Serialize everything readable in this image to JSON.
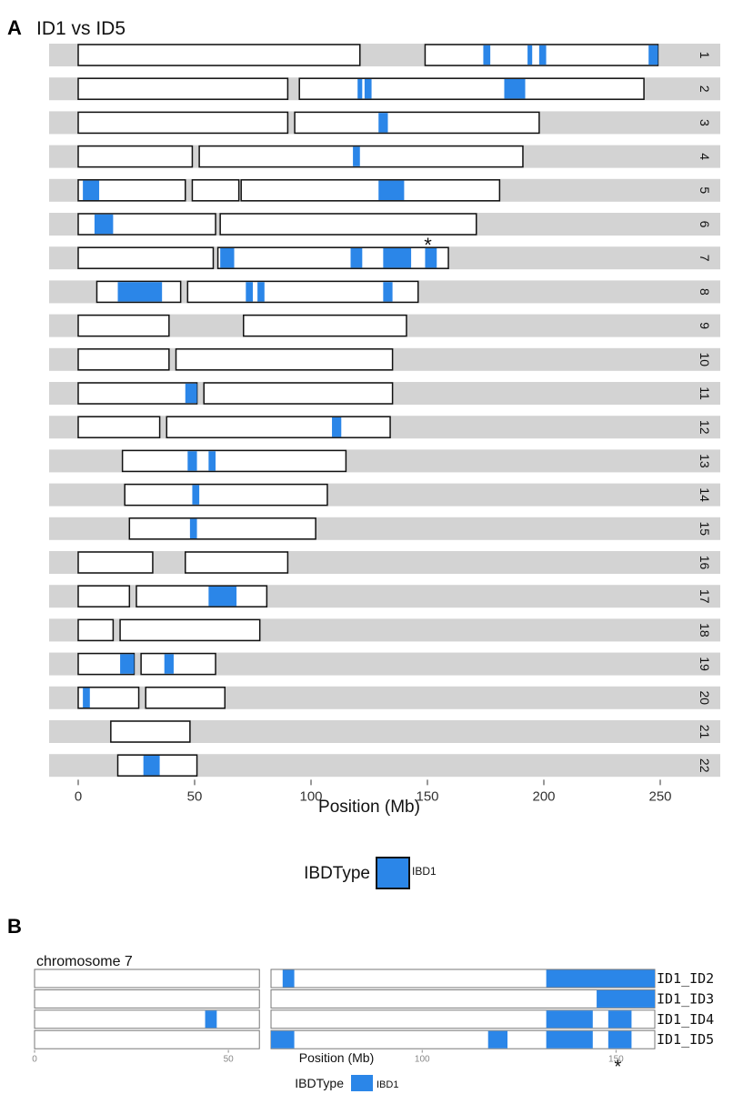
{
  "panel_a": {
    "letter": "A",
    "title": "ID1 vs ID5",
    "xlabel": "Position (Mb)",
    "x_ticks": [
      0,
      50,
      100,
      150,
      200,
      250
    ],
    "legend": {
      "title": "IBDType",
      "label": "IBD1"
    },
    "asterisk": "*"
  },
  "panel_b": {
    "letter": "B",
    "title": "chromosome 7",
    "xlabel": "Position (Mb)",
    "x_ticks": [
      0,
      50,
      100,
      150
    ],
    "legend": {
      "title": "IBDType",
      "label": "IBD1"
    },
    "asterisk": "*"
  },
  "colors": {
    "ibd1": "#2b86e8",
    "strip": "#d3d3d3",
    "outline": "#111111"
  },
  "chart_data": [
    {
      "type": "bar",
      "title": "ID1 vs ID5",
      "xlabel": "Position (Mb)",
      "xlim": [
        -13,
        275
      ],
      "grid": false,
      "legend_position": "bottom",
      "legend": [
        {
          "name": "IBD1",
          "color": "#2b86e8"
        }
      ],
      "chromosomes": [
        {
          "name": "1",
          "arms": [
            [
              0,
              121
            ],
            [
              149,
              249
            ]
          ],
          "ibd1": [
            [
              174,
              177
            ],
            [
              193,
              195
            ],
            [
              198,
              201
            ],
            [
              245,
              249
            ]
          ]
        },
        {
          "name": "2",
          "arms": [
            [
              0,
              90
            ],
            [
              95,
              243
            ]
          ],
          "ibd1": [
            [
              120,
              122
            ],
            [
              123,
              126
            ],
            [
              183,
              192
            ]
          ]
        },
        {
          "name": "3",
          "arms": [
            [
              0,
              90
            ],
            [
              93,
              198
            ]
          ],
          "ibd1": [
            [
              129,
              133
            ]
          ]
        },
        {
          "name": "4",
          "arms": [
            [
              0,
              49
            ],
            [
              52,
              191
            ]
          ],
          "ibd1": [
            [
              118,
              121
            ]
          ]
        },
        {
          "name": "5",
          "arms": [
            [
              0,
              46
            ],
            [
              49,
              69
            ],
            [
              70,
              181
            ]
          ],
          "ibd1": [
            [
              2,
              9
            ],
            [
              129,
              140
            ]
          ]
        },
        {
          "name": "6",
          "arms": [
            [
              0,
              59
            ],
            [
              61,
              171
            ]
          ],
          "ibd1": [
            [
              7,
              15
            ]
          ]
        },
        {
          "name": "7",
          "arms": [
            [
              0,
              58
            ],
            [
              60,
              159
            ]
          ],
          "ibd1": [
            [
              61,
              67
            ],
            [
              117,
              122
            ],
            [
              131,
              143
            ],
            [
              149,
              154
            ]
          ],
          "marker": 151
        },
        {
          "name": "8",
          "arms": [
            [
              8,
              44
            ],
            [
              47,
              146
            ]
          ],
          "ibd1": [
            [
              17,
              36
            ],
            [
              72,
              75
            ],
            [
              77,
              80
            ],
            [
              131,
              135
            ]
          ]
        },
        {
          "name": "9",
          "arms": [
            [
              0,
              39
            ],
            [
              71,
              141
            ]
          ],
          "ibd1": []
        },
        {
          "name": "10",
          "arms": [
            [
              0,
              39
            ],
            [
              42,
              135
            ]
          ],
          "ibd1": []
        },
        {
          "name": "11",
          "arms": [
            [
              0,
              51
            ],
            [
              54,
              135
            ]
          ],
          "ibd1": [
            [
              46,
              51
            ]
          ]
        },
        {
          "name": "12",
          "arms": [
            [
              0,
              35
            ],
            [
              38,
              134
            ]
          ],
          "ibd1": [
            [
              109,
              113
            ]
          ]
        },
        {
          "name": "13",
          "arms": [
            [
              19,
              115
            ]
          ],
          "ibd1": [
            [
              47,
              51
            ],
            [
              56,
              59
            ]
          ]
        },
        {
          "name": "14",
          "arms": [
            [
              20,
              107
            ]
          ],
          "ibd1": [
            [
              49,
              52
            ]
          ]
        },
        {
          "name": "15",
          "arms": [
            [
              22,
              102
            ]
          ],
          "ibd1": [
            [
              48,
              51
            ]
          ]
        },
        {
          "name": "16",
          "arms": [
            [
              0,
              32
            ],
            [
              46,
              90
            ]
          ],
          "ibd1": []
        },
        {
          "name": "17",
          "arms": [
            [
              0,
              22
            ],
            [
              25,
              81
            ]
          ],
          "ibd1": [
            [
              56,
              68
            ]
          ]
        },
        {
          "name": "18",
          "arms": [
            [
              0,
              15
            ],
            [
              18,
              78
            ]
          ],
          "ibd1": []
        },
        {
          "name": "19",
          "arms": [
            [
              0,
              24
            ],
            [
              27,
              59
            ]
          ],
          "ibd1": [
            [
              18,
              24
            ],
            [
              37,
              41
            ]
          ]
        },
        {
          "name": "20",
          "arms": [
            [
              0,
              26
            ],
            [
              29,
              63
            ]
          ],
          "ibd1": [
            [
              2,
              5
            ]
          ]
        },
        {
          "name": "21",
          "arms": [
            [
              14,
              48
            ]
          ],
          "ibd1": []
        },
        {
          "name": "22",
          "arms": [
            [
              17,
              51
            ]
          ],
          "ibd1": [
            [
              28,
              35
            ]
          ]
        }
      ]
    },
    {
      "type": "bar",
      "title": "chromosome 7",
      "xlabel": "Position (Mb)",
      "xlim": [
        0,
        160
      ],
      "grid": false,
      "legend_position": "bottom",
      "legend": [
        {
          "name": "IBD1",
          "color": "#2b86e8"
        }
      ],
      "arms": [
        [
          0,
          58
        ],
        [
          61,
          160
        ]
      ],
      "marker": 150,
      "pairs": [
        {
          "name": "ID1_ID2",
          "ibd1": [
            [
              64,
              67
            ],
            [
              132,
              160
            ]
          ]
        },
        {
          "name": "ID1_ID3",
          "ibd1": [
            [
              145,
              160
            ]
          ]
        },
        {
          "name": "ID1_ID4",
          "ibd1": [
            [
              44,
              47
            ],
            [
              132,
              144
            ],
            [
              148,
              154
            ]
          ]
        },
        {
          "name": "ID1_ID5",
          "ibd1": [
            [
              61,
              67
            ],
            [
              117,
              122
            ],
            [
              132,
              144
            ],
            [
              148,
              154
            ]
          ]
        }
      ]
    }
  ]
}
